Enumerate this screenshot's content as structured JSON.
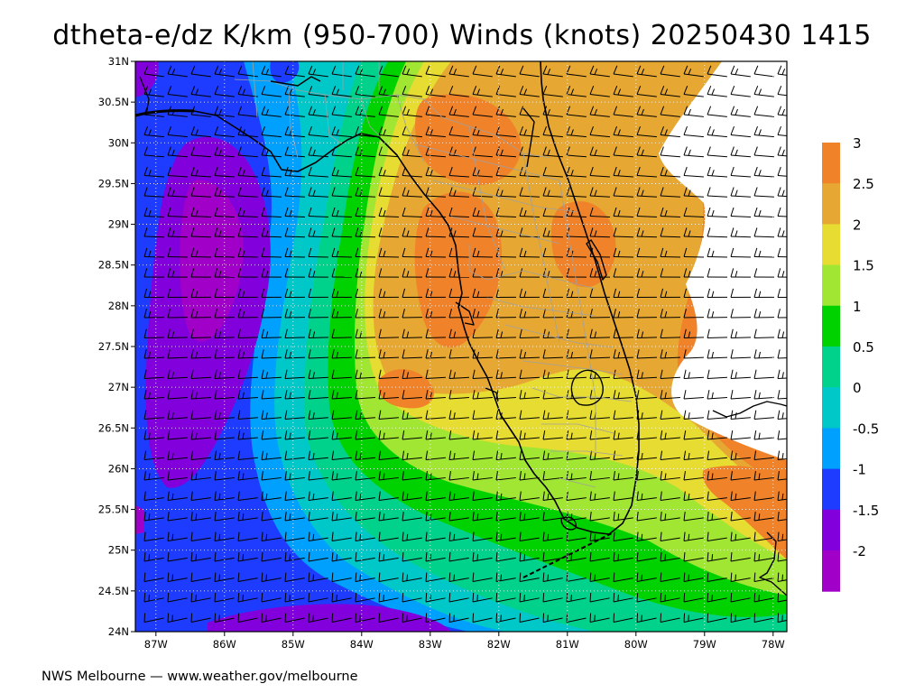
{
  "title": "dtheta-e/dz K/km (950-700) Winds (knots) 20250430 1415",
  "footer": "NWS Melbourne — www.weather.gov/melbourne",
  "map": {
    "lat_labels": [
      "31N",
      "30.5N",
      "30N",
      "29.5N",
      "29N",
      "28.5N",
      "28N",
      "27.5N",
      "27N",
      "26.5N",
      "26N",
      "25.5N",
      "25N",
      "24.5N",
      "24N"
    ],
    "lon_labels": [
      "87W",
      "86W",
      "85W",
      "84W",
      "83W",
      "82W",
      "81W",
      "80W",
      "79W",
      "78W"
    ],
    "lat_range": [
      24,
      31
    ],
    "lon_range": [
      -87.3,
      -77.8
    ],
    "colorbar": {
      "labels": [
        "3",
        "2.5",
        "2",
        "1.5",
        "1",
        "0.5",
        "0",
        "-0.5",
        "-1",
        "-1.5",
        "-2"
      ],
      "colors": [
        "#f0822a",
        "#e6a832",
        "#e6dc32",
        "#a0e632",
        "#00d200",
        "#00d28c",
        "#00c8c8",
        "#00a0ff",
        "#1e3cff",
        "#8200dc",
        "#a000c8"
      ],
      "above_max_color": "#ffffff"
    }
  }
}
